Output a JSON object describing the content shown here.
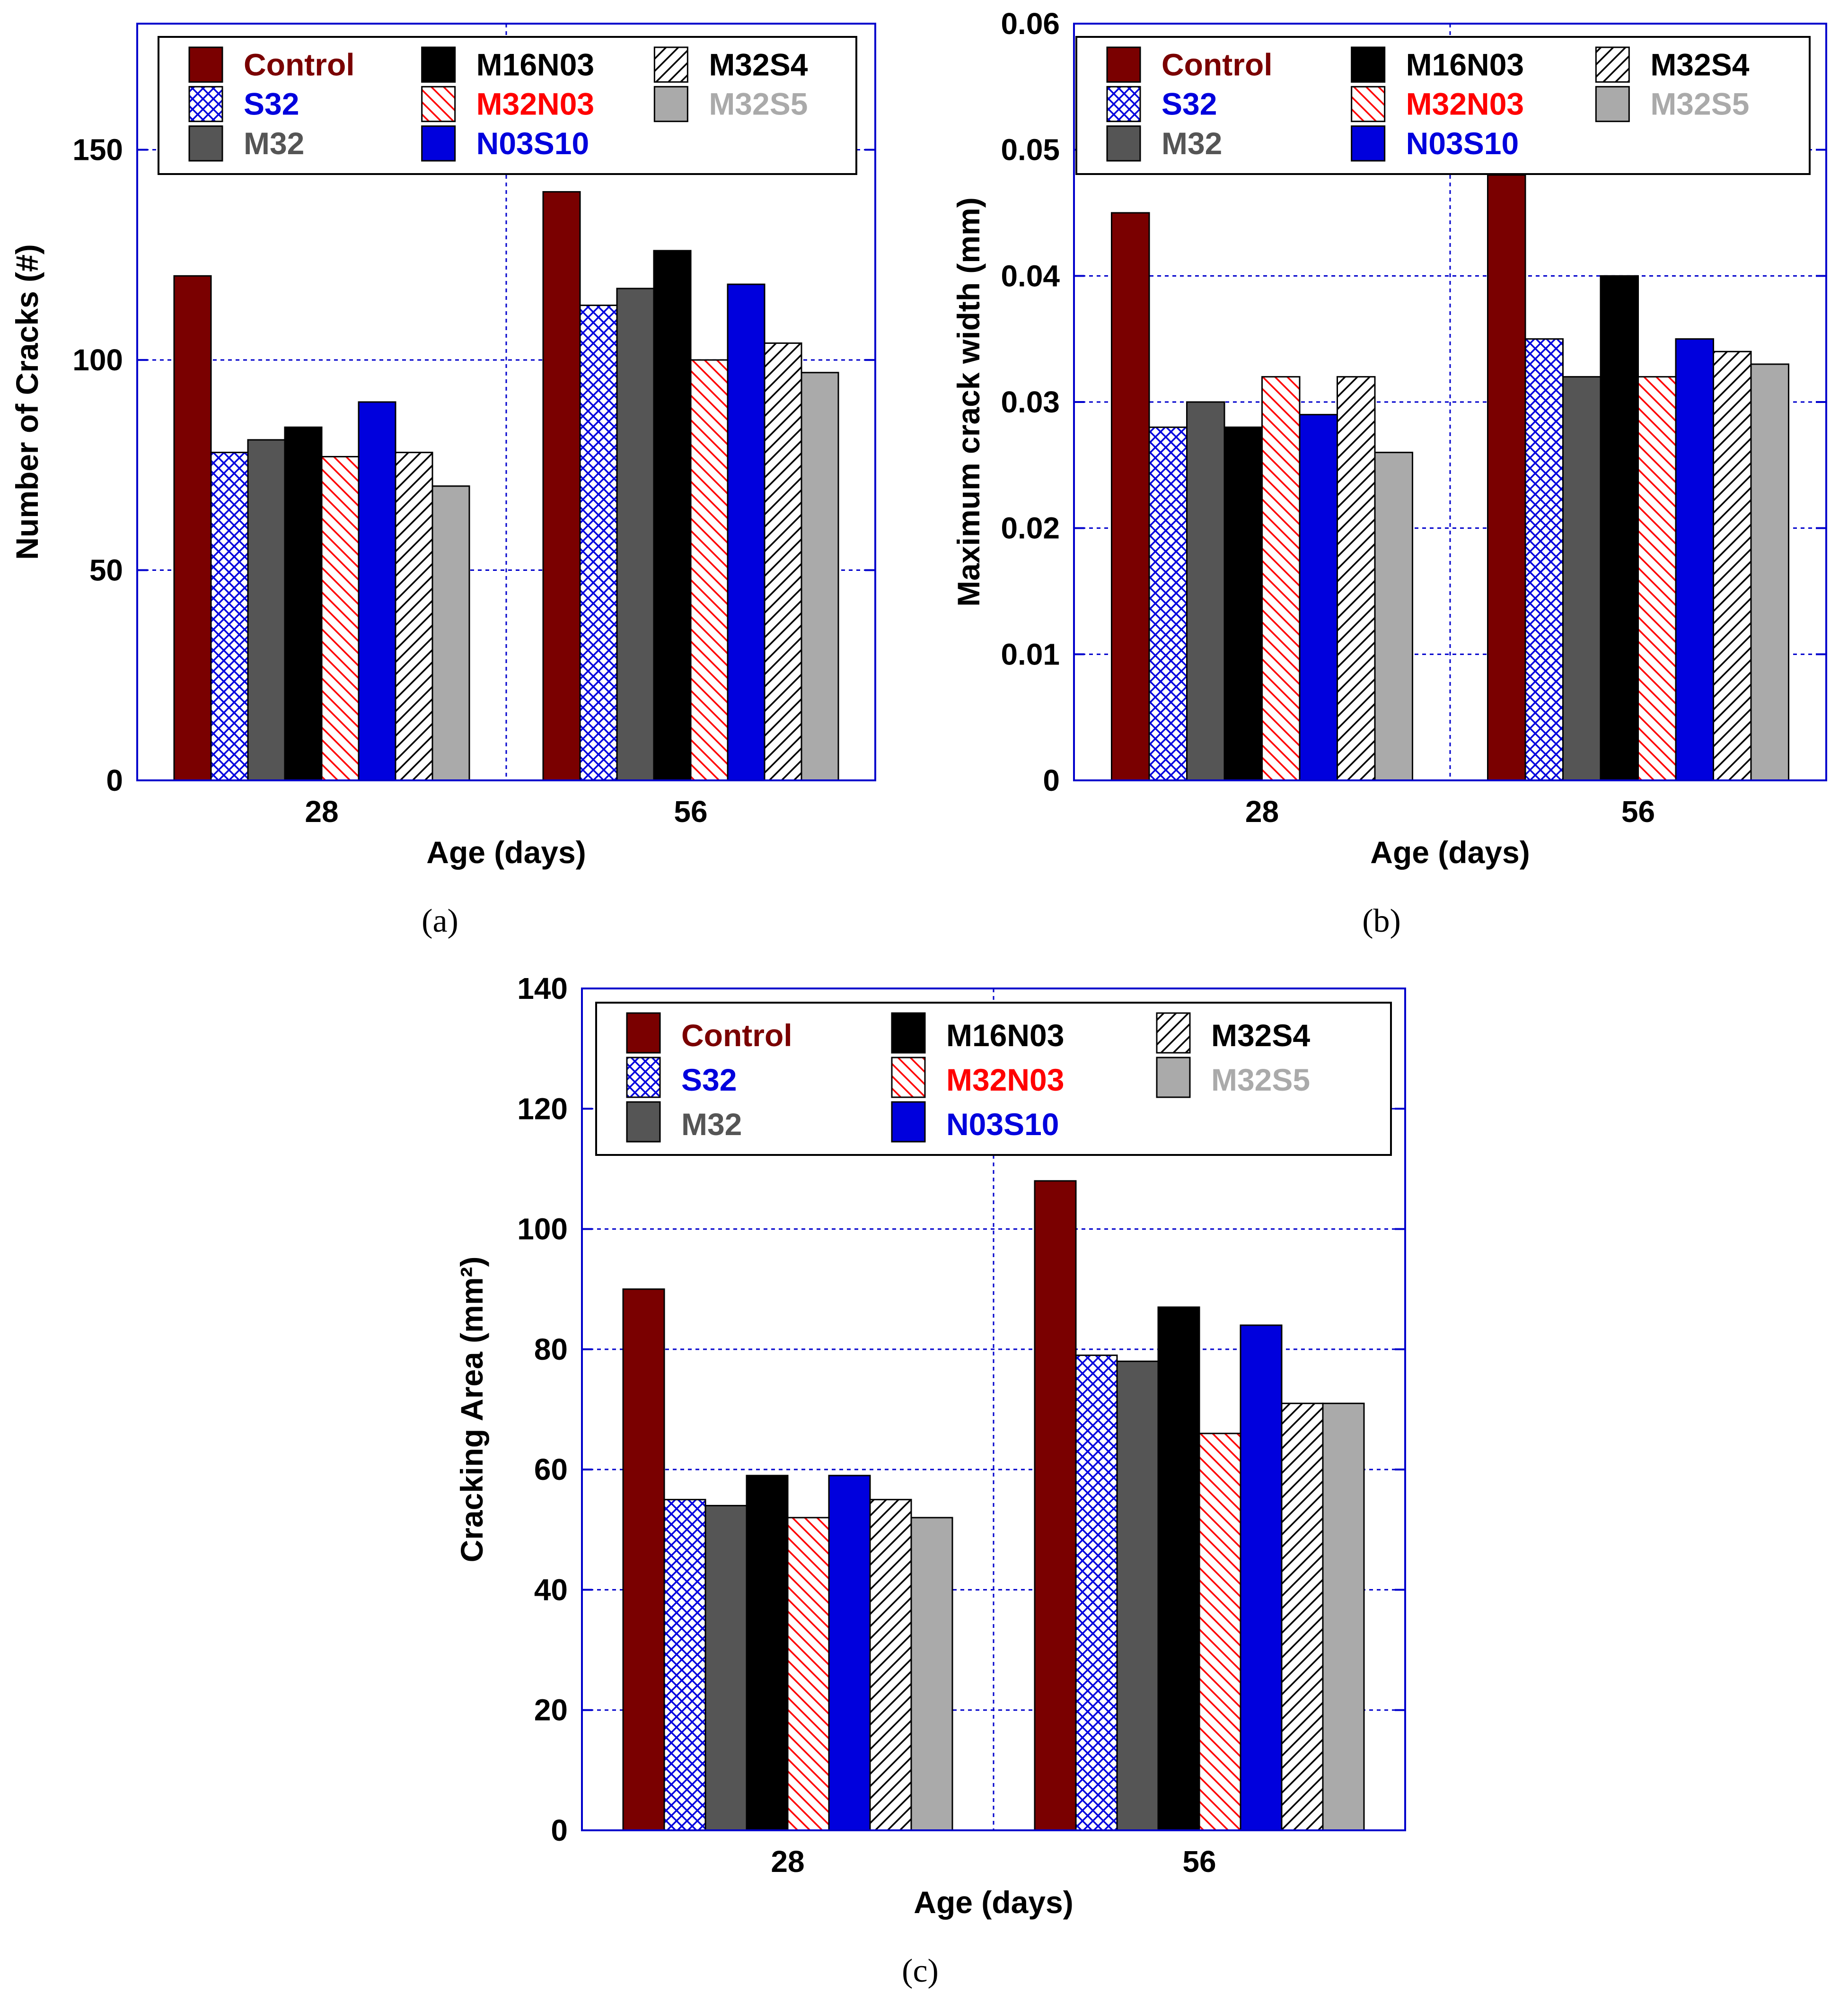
{
  "figure": {
    "captions": [
      "(a)",
      "(b)",
      "(c)"
    ]
  },
  "colors": {
    "frame": "#0000cc",
    "grid": "#0000cc",
    "Control": "#7a0000",
    "S32": "#0000dd",
    "M32": "#555555",
    "M16N03": "#000000",
    "M32N03": "#ff0000",
    "N03S10": "#0000dd",
    "M32S4": "#000000",
    "M32S5": "#aaaaaa"
  },
  "series_style": [
    {
      "name": "Control",
      "fill": "#7a0000",
      "pattern": "solid",
      "label_color": "#7a0000"
    },
    {
      "name": "S32",
      "fill": "#ffffff",
      "pattern": "crosshatch-blue",
      "label_color": "#0000dd"
    },
    {
      "name": "M32",
      "fill": "#555555",
      "pattern": "solid",
      "label_color": "#555555"
    },
    {
      "name": "M16N03",
      "fill": "#000000",
      "pattern": "solid",
      "label_color": "#000000"
    },
    {
      "name": "M32N03",
      "fill": "#ffffff",
      "pattern": "hatch-red",
      "label_color": "#ff0000"
    },
    {
      "name": "N03S10",
      "fill": "#0000dd",
      "pattern": "solid",
      "label_color": "#0000dd"
    },
    {
      "name": "M32S4",
      "fill": "#ffffff",
      "pattern": "hatch-black",
      "label_color": "#000000"
    },
    {
      "name": "M32S5",
      "fill": "#aaaaaa",
      "pattern": "solid",
      "label_color": "#aaaaaa"
    }
  ],
  "legend_order": [
    "Control",
    "M16N03",
    "M32S4",
    "S32",
    "M32N03",
    "M32S5",
    "M32",
    "N03S10"
  ],
  "chart_data": [
    {
      "id": "a",
      "type": "bar",
      "caption": "(a)",
      "categories": [
        "28",
        "56"
      ],
      "xlabel": "Age (days)",
      "ylabel": "Number of Cracks (#)",
      "ylim": [
        0,
        180
      ],
      "yticks": [
        0,
        50,
        100,
        150
      ],
      "grid": true,
      "legend_position": "top",
      "series": [
        {
          "name": "Control",
          "values": [
            120,
            140
          ]
        },
        {
          "name": "S32",
          "values": [
            78,
            113
          ]
        },
        {
          "name": "M32",
          "values": [
            81,
            117
          ]
        },
        {
          "name": "M16N03",
          "values": [
            84,
            126
          ]
        },
        {
          "name": "M32N03",
          "values": [
            77,
            100
          ]
        },
        {
          "name": "N03S10",
          "values": [
            90,
            118
          ]
        },
        {
          "name": "M32S4",
          "values": [
            78,
            104
          ]
        },
        {
          "name": "M32S5",
          "values": [
            70,
            97
          ]
        }
      ]
    },
    {
      "id": "b",
      "type": "bar",
      "caption": "(b)",
      "categories": [
        "28",
        "56"
      ],
      "xlabel": "Age (days)",
      "ylabel": "Maximum crack width (mm)",
      "ylim": [
        0,
        0.06
      ],
      "yticks": [
        0,
        0.01,
        0.02,
        0.03,
        0.04,
        0.05,
        0.06
      ],
      "ytick_labels": [
        "0",
        "0.01",
        "0.02",
        "0.03",
        "0.04",
        "0.05",
        "0.06"
      ],
      "grid": true,
      "legend_position": "top",
      "series": [
        {
          "name": "Control",
          "values": [
            0.045,
            0.048
          ]
        },
        {
          "name": "S32",
          "values": [
            0.028,
            0.035
          ]
        },
        {
          "name": "M32",
          "values": [
            0.03,
            0.032
          ]
        },
        {
          "name": "M16N03",
          "values": [
            0.028,
            0.04
          ]
        },
        {
          "name": "M32N03",
          "values": [
            0.032,
            0.032
          ]
        },
        {
          "name": "N03S10",
          "values": [
            0.029,
            0.035
          ]
        },
        {
          "name": "M32S4",
          "values": [
            0.032,
            0.034
          ]
        },
        {
          "name": "M32S5",
          "values": [
            0.026,
            0.033
          ]
        }
      ]
    },
    {
      "id": "c",
      "type": "bar",
      "caption": "(c)",
      "categories": [
        "28",
        "56"
      ],
      "xlabel": "Age (days)",
      "ylabel": "Cracking Area (mm²)",
      "ylim": [
        0,
        140
      ],
      "yticks": [
        0,
        20,
        40,
        60,
        80,
        100,
        120,
        140
      ],
      "grid": true,
      "legend_position": "top",
      "series": [
        {
          "name": "Control",
          "values": [
            90,
            108
          ]
        },
        {
          "name": "S32",
          "values": [
            55,
            79
          ]
        },
        {
          "name": "M32",
          "values": [
            54,
            78
          ]
        },
        {
          "name": "M16N03",
          "values": [
            59,
            87
          ]
        },
        {
          "name": "M32N03",
          "values": [
            52,
            66
          ]
        },
        {
          "name": "N03S10",
          "values": [
            59,
            84
          ]
        },
        {
          "name": "M32S4",
          "values": [
            55,
            71
          ]
        },
        {
          "name": "M32S5",
          "values": [
            52,
            71
          ]
        }
      ]
    }
  ]
}
